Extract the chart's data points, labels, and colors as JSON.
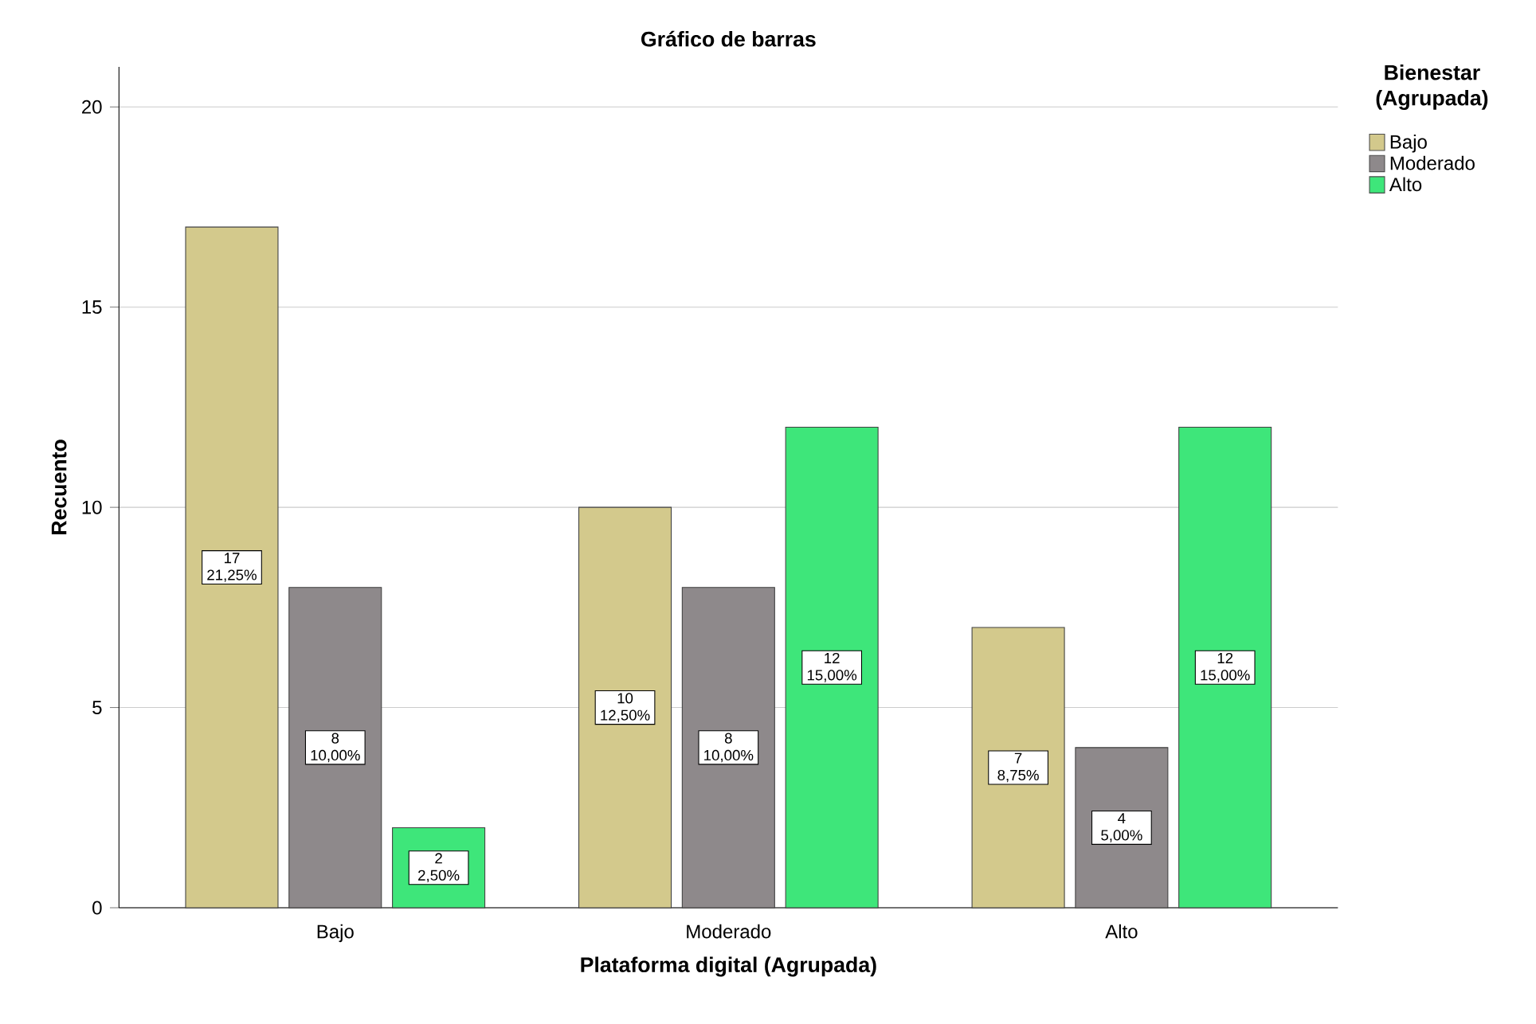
{
  "chart_data": {
    "type": "bar",
    "title": "Gráfico de barras",
    "xlabel": "Plataforma digital (Agrupada)",
    "ylabel": "Recuento",
    "legend_title": "Bienestar (Agrupada)",
    "categories": [
      "Bajo",
      "Moderado",
      "Alto"
    ],
    "series": [
      {
        "name": "Bajo",
        "color": "#d3c98c",
        "values": [
          17,
          10,
          7
        ],
        "value_labels": [
          "17 21,25%",
          "10 12,50%",
          "7 8,75%"
        ]
      },
      {
        "name": "Moderado",
        "color": "#8e898b",
        "values": [
          8,
          8,
          4
        ],
        "value_labels": [
          "8 10,00%",
          "8 10,00%",
          "4 5,00%"
        ]
      },
      {
        "name": "Alto",
        "color": "#3ee67a",
        "values": [
          2,
          12,
          12
        ],
        "value_labels": [
          "2 2,50%",
          "12 15,00%",
          "12 15,00%"
        ]
      }
    ],
    "ylim": [
      0,
      21
    ],
    "yticks": [
      0,
      5,
      10,
      15,
      20
    ],
    "grid": "y",
    "legend": "top right"
  }
}
